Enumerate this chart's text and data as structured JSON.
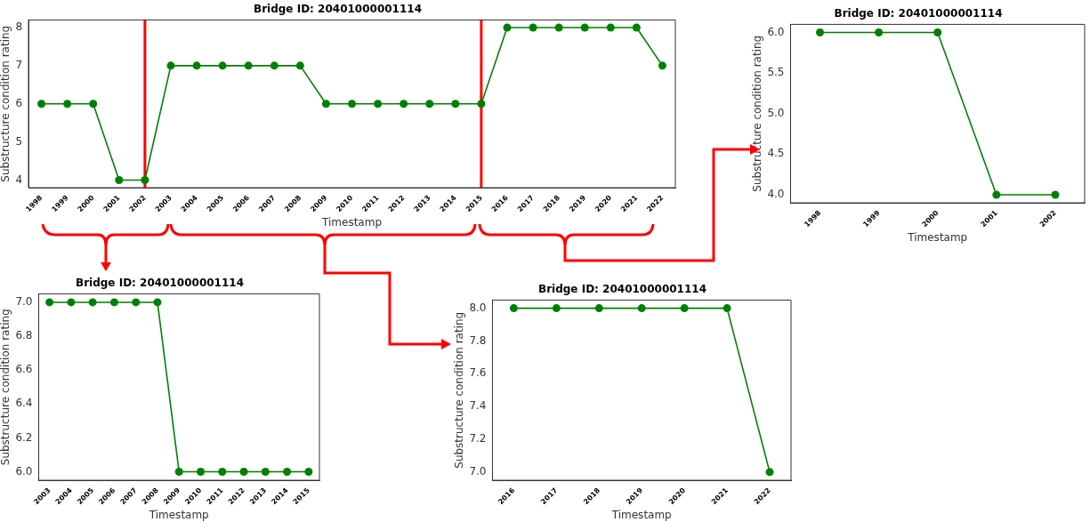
{
  "chart_data": [
    {
      "type": "line",
      "title": "Bridge ID: 20401000001114",
      "xlabel": "Timestamp",
      "ylabel": "Substructure condition rating",
      "categories": [
        "1998",
        "1999",
        "2000",
        "2001",
        "2002",
        "2003",
        "2004",
        "2005",
        "2006",
        "2007",
        "2008",
        "2009",
        "2010",
        "2011",
        "2012",
        "2013",
        "2014",
        "2015",
        "2016",
        "2017",
        "2018",
        "2019",
        "2020",
        "2021",
        "2022"
      ],
      "series": [
        {
          "color": "#008000",
          "values": [
            6,
            6,
            6,
            4,
            4,
            7,
            7,
            7,
            7,
            7,
            7,
            6,
            6,
            6,
            6,
            6,
            6,
            6,
            8,
            8,
            8,
            8,
            8,
            8,
            7
          ]
        }
      ],
      "ylim": [
        3.8,
        8.2
      ],
      "yticks": [
        4,
        5,
        6,
        7,
        8
      ],
      "marker": "circle",
      "line_style": "solid",
      "ref_lines": [
        {
          "axis": "x",
          "value": "2002",
          "color": "#ff0000"
        },
        {
          "axis": "x",
          "value": "2015",
          "color": "#ff0000"
        }
      ]
    },
    {
      "type": "line",
      "title": "Bridge ID: 20401000001114",
      "xlabel": "Timestamp",
      "ylabel": "Substructure condition rating",
      "categories": [
        "1998",
        "1999",
        "2000",
        "2001",
        "2002"
      ],
      "series": [
        {
          "color": "#008000",
          "values": [
            6,
            6,
            6,
            4,
            4
          ]
        }
      ],
      "ylim": [
        3.9,
        6.1
      ],
      "yticks": [
        {
          "value": 4,
          "label": "4.0"
        },
        {
          "value": 4.5,
          "label": "4.5"
        },
        {
          "value": 5,
          "label": "5.0"
        },
        {
          "value": 5.5,
          "label": "5.5"
        },
        {
          "value": 6,
          "label": "6.0"
        }
      ],
      "marker": "circle",
      "line_style": "solid"
    },
    {
      "type": "line",
      "title": "Bridge ID: 20401000001114",
      "xlabel": "Timestamp",
      "ylabel": "Substructure condition rating",
      "categories": [
        "2003",
        "2004",
        "2005",
        "2006",
        "2007",
        "2008",
        "2009",
        "2010",
        "2011",
        "2012",
        "2013",
        "2014",
        "2015"
      ],
      "series": [
        {
          "color": "#008000",
          "values": [
            7,
            7,
            7,
            7,
            7,
            7,
            6,
            6,
            6,
            6,
            6,
            6,
            6
          ]
        }
      ],
      "ylim": [
        5.95,
        7.05
      ],
      "yticks": [
        {
          "value": 6,
          "label": "6.0"
        },
        {
          "value": 6.2,
          "label": "6.2"
        },
        {
          "value": 6.4,
          "label": "6.4"
        },
        {
          "value": 6.6,
          "label": "6.6"
        },
        {
          "value": 6.8,
          "label": "6.8"
        },
        {
          "value": 7,
          "label": "7.0"
        }
      ],
      "marker": "circle",
      "line_style": "solid"
    },
    {
      "type": "line",
      "title": "Bridge ID: 20401000001114",
      "xlabel": "Timestamp",
      "ylabel": "Substructure condition rating",
      "categories": [
        "2016",
        "2017",
        "2018",
        "2019",
        "2020",
        "2021",
        "2022"
      ],
      "series": [
        {
          "color": "#008000",
          "values": [
            8,
            8,
            8,
            8,
            8,
            8,
            7
          ]
        }
      ],
      "ylim": [
        6.95,
        8.05
      ],
      "yticks": [
        {
          "value": 7,
          "label": "7.0"
        },
        {
          "value": 7.2,
          "label": "7.2"
        },
        {
          "value": 7.4,
          "label": "7.4"
        },
        {
          "value": 7.6,
          "label": "7.6"
        },
        {
          "value": 7.8,
          "label": "7.8"
        },
        {
          "value": 8,
          "label": "8.0"
        }
      ],
      "marker": "circle",
      "line_style": "solid"
    }
  ]
}
